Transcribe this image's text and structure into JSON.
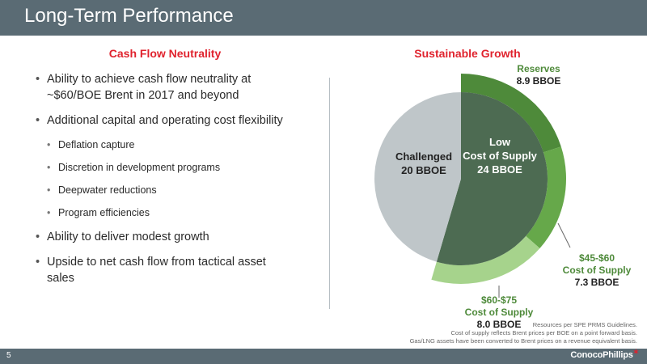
{
  "header": {
    "title": "Long-Term Performance"
  },
  "left": {
    "heading": "Cash Flow Neutrality",
    "bullets": [
      "Ability to achieve cash flow neutrality at ~$60/BOE Brent in 2017 and beyond",
      "Additional capital and operating cost flexibility",
      "Ability to deliver modest growth",
      "Upside to net cash flow from tactical asset sales"
    ],
    "sub_bullets": [
      "Deflation capture",
      "Discretion in development programs",
      "Deepwater reductions",
      "Program efficiencies"
    ]
  },
  "right": {
    "heading": "Sustainable Growth"
  },
  "chart_data": {
    "type": "pie",
    "title": "Sustainable Growth",
    "inner": [
      {
        "label": "Low Cost of Supply",
        "value": 24,
        "value_label": "24 BBOE",
        "color": "#4d6b52"
      },
      {
        "label": "Challenged",
        "value": 20,
        "value_label": "20 BBOE",
        "color": "#bfc6c9"
      }
    ],
    "outer": [
      {
        "label": "Reserves",
        "value": 8.9,
        "value_label": "8.9 BBOE",
        "color": "#4e8a3a"
      },
      {
        "label": "$45-$60 Cost of Supply",
        "value": 7.3,
        "value_label": "7.3 BBOE",
        "color": "#66a84a"
      },
      {
        "label": "$60-$75 Cost of Supply",
        "value": 8.0,
        "value_label": "8.0 BBOE",
        "color": "#a6d38c"
      }
    ],
    "label_text": {
      "low_line1": "Low",
      "low_line2": "Cost of Supply",
      "low_value": "24 BBOE",
      "challenged_name": "Challenged",
      "challenged_value": "20 BBOE",
      "reserves_name": "Reserves",
      "reserves_value": "8.9 BBOE",
      "mid_price": "$45-$60",
      "mid_name": "Cost of Supply",
      "mid_value": "7.3 BBOE",
      "high_price": "$60-$75",
      "high_name": "Cost of Supply",
      "high_value": "8.0 BBOE"
    }
  },
  "footnotes": [
    "Resources per SPE PRMS Guidelines.",
    "Cost of supply reflects Brent prices per BOE on a point forward basis.",
    "Gas/LNG assets have been converted to Brent prices on a revenue equivalent basis."
  ],
  "footer": {
    "page": "5",
    "logo_text": "ConocoPhillips"
  },
  "colors": {
    "accent_red": "#e0232e",
    "bar_gray": "#5a6b74"
  }
}
